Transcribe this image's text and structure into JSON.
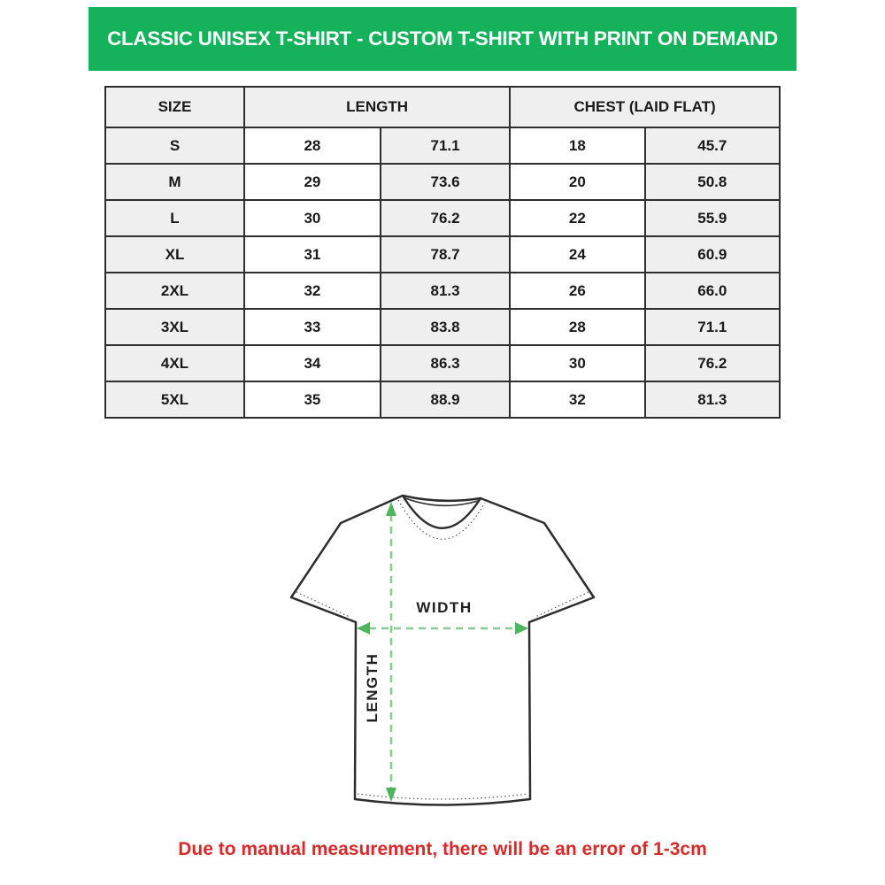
{
  "banner": {
    "title": "CLASSIC UNISEX T-SHIRT - CUSTOM T-SHIRT WITH PRINT ON DEMAND",
    "bg_color": "#16b25b",
    "text_color": "#ffffff"
  },
  "size_chart": {
    "header": {
      "size": "SIZE",
      "length": "LENGTH",
      "chest": "CHEST (LAID FLAT)"
    },
    "rows": [
      [
        "S",
        "28",
        "71.1",
        "18",
        "45.7"
      ],
      [
        "M",
        "29",
        "73.6",
        "20",
        "50.8"
      ],
      [
        "L",
        "30",
        "76.2",
        "22",
        "55.9"
      ],
      [
        "XL",
        "31",
        "78.7",
        "24",
        "60.9"
      ],
      [
        "2XL",
        "32",
        "81.3",
        "26",
        "66.0"
      ],
      [
        "3XL",
        "33",
        "83.8",
        "28",
        "71.1"
      ],
      [
        "4XL",
        "34",
        "86.3",
        "30",
        "76.2"
      ],
      [
        "5XL",
        "35",
        "88.9",
        "32",
        "81.3"
      ]
    ]
  },
  "diagram": {
    "width_label": "WIDTH",
    "length_label": "LENGTH",
    "arrow_dash_color": "#87cc90",
    "arrowhead_color": "#4fb45e",
    "outline_color": "#2d2d2d"
  },
  "footer": {
    "note": "Due to manual measurement, there will be an error of 1-3cm",
    "color": "#d92a2a"
  }
}
